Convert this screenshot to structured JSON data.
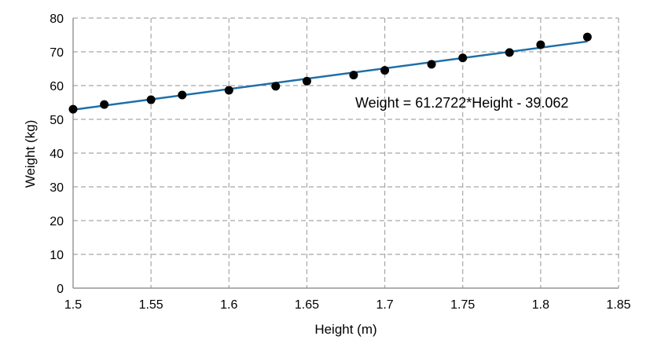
{
  "chart_data": {
    "type": "scatter",
    "title": "",
    "xlabel": "Height (m)",
    "ylabel": "Weight (kg)",
    "xlim": [
      1.5,
      1.85
    ],
    "ylim": [
      0,
      80
    ],
    "x_ticks": [
      "1.5",
      "1.55",
      "1.6",
      "1.65",
      "1.7",
      "1.75",
      "1.8",
      "1.85"
    ],
    "y_ticks": [
      "0",
      "10",
      "20",
      "30",
      "40",
      "50",
      "60",
      "70",
      "80"
    ],
    "grid": true,
    "legend": "none",
    "points": [
      {
        "x": 1.5,
        "y": 53.0
      },
      {
        "x": 1.52,
        "y": 54.4
      },
      {
        "x": 1.55,
        "y": 55.8
      },
      {
        "x": 1.57,
        "y": 57.2
      },
      {
        "x": 1.6,
        "y": 58.6
      },
      {
        "x": 1.63,
        "y": 59.8
      },
      {
        "x": 1.65,
        "y": 61.3
      },
      {
        "x": 1.68,
        "y": 63.1
      },
      {
        "x": 1.7,
        "y": 64.5
      },
      {
        "x": 1.73,
        "y": 66.3
      },
      {
        "x": 1.75,
        "y": 68.2
      },
      {
        "x": 1.78,
        "y": 69.8
      },
      {
        "x": 1.8,
        "y": 72.1
      },
      {
        "x": 1.83,
        "y": 74.4
      }
    ],
    "trendline": {
      "slope": 61.2722,
      "intercept": -39.062,
      "x_range": [
        1.5,
        1.83
      ]
    },
    "equation_label": "Weight = 61.2722*Height - 39.062",
    "colors": {
      "points": "#000000",
      "trendline": "#1f6fa8",
      "grid": "#a6a6a6",
      "axis": "#808080"
    }
  }
}
